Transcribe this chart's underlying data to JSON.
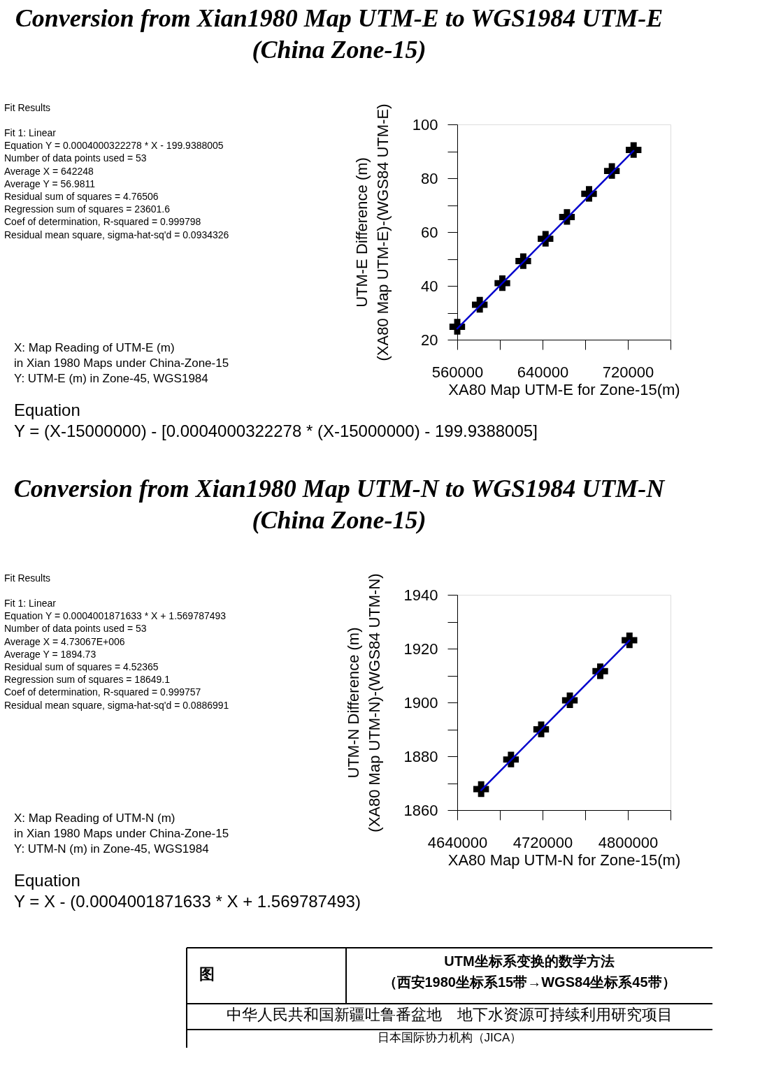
{
  "chart_data": [
    {
      "type": "scatter",
      "title": "Conversion from Xian1980 Map UTM-E to WGS1984 UTM-E\n(China Zone-15)",
      "xlabel": "XA80 Map UTM-E for Zone-15(m)",
      "ylabel": "UTM-E Difference (m)\n(XA80 Map UTM-E)-(WGS84 UTM-E)",
      "xlim": [
        560000,
        760000
      ],
      "ylim": [
        20,
        100
      ],
      "xticks": [
        560000,
        {
          "value": 600000,
          "label": null
        },
        640000,
        {
          "value": 680000,
          "label": null
        },
        720000,
        {
          "value": 760000,
          "label": null
        }
      ],
      "yticks": [
        20,
        {
          "value": 30,
          "label": null
        },
        40,
        {
          "value": 50,
          "label": null
        },
        60,
        {
          "value": 70,
          "label": null
        },
        80,
        {
          "value": 90,
          "label": null
        },
        100
      ],
      "grid": false,
      "series": [
        {
          "type": "scatter",
          "marker": "cross",
          "color": "#000000",
          "x": [
            560000,
            581100,
            602300,
            621900,
            642800,
            662900,
            683600,
            705000,
            725400
          ],
          "values": [
            24.8,
            33.0,
            41.0,
            49.2,
            57.5,
            65.6,
            74.2,
            82.7,
            90.5
          ]
        },
        {
          "type": "line",
          "color": "#0000cc",
          "x": [
            560000,
            725400
          ],
          "values": [
            24.1,
            90.2
          ]
        }
      ],
      "annotations": [
        "Fit Results",
        "Fit 1: Linear\nEquation Y = 0.0004000322278 * X - 199.9388005\nNumber of data points used = 53\nAverage X = 642248\nAverage Y = 56.9811\nResidual sum of squares = 4.76506\nRegression sum of squares = 23601.6\nCoef of determination, R-squared = 0.999798\nResidual mean square, sigma-hat-sq'd = 0.0934326",
        "X: Map Reading of UTM-E (m)\n        in Xian 1980 Maps under China-Zone-15\nY: UTM-E (m) in Zone-45, WGS1984",
        "Equation",
        "Y = (X-15000000) - [0.0004000322278 * (X-15000000) - 199.9388005]"
      ]
    },
    {
      "type": "scatter",
      "title": "Conversion from Xian1980 Map UTM-N to WGS1984 UTM-N\n(China Zone-15)",
      "xlabel": "XA80 Map UTM-N for Zone-15(m)",
      "ylabel": "UTM-N Difference (m)\n(XA80 Map UTM-N)-(WGS84 UTM-N)",
      "xlim": [
        4640000,
        4840000
      ],
      "ylim": [
        1860,
        1940
      ],
      "xticks": [
        4640000,
        {
          "value": 4680000,
          "label": null
        },
        4720000,
        {
          "value": 4760000,
          "label": null
        },
        4800000,
        {
          "value": 4840000,
          "label": null
        }
      ],
      "yticks": [
        1860,
        {
          "value": 1870,
          "label": null
        },
        1880,
        {
          "value": 1890,
          "label": null
        },
        1900,
        {
          "value": 1910,
          "label": null
        },
        1920,
        {
          "value": 1930,
          "label": null
        },
        1940
      ],
      "grid": false,
      "series": [
        {
          "type": "scatter",
          "marker": "cross",
          "color": "#000000",
          "x": [
            4662400,
            4690400,
            4718700,
            4745600,
            4774100,
            4801500
          ],
          "values": [
            1867.8,
            1878.8,
            1890.0,
            1900.8,
            1911.6,
            1923.1
          ]
        },
        {
          "type": "line",
          "color": "#0000cc",
          "x": [
            4662400,
            4801500
          ],
          "values": [
            1867.4,
            1923.0
          ]
        }
      ],
      "annotations": [
        "Fit Results",
        "Fit 1: Linear\nEquation Y = 0.0004001871633 * X + 1.569787493\nNumber of data points used = 53\nAverage X = 4.73067E+006\nAverage Y = 1894.73\nResidual sum of squares = 4.52365\nRegression sum of squares = 18649.1\nCoef of determination, R-squared = 0.999757\nResidual mean square, sigma-hat-sq'd = 0.0886991",
        "X: Map Reading of UTM-N (m)\n        in Xian 1980 Maps under China-Zone-15\nY: UTM-N (m) in Zone-45, WGS1984",
        "Equation",
        "Y = X - (0.0004001871633 * X + 1.569787493)"
      ]
    },
    {
      "type": "other",
      "annotations": [
        "图",
        "UTM坐标系变换的数学方法",
        "（西安1980坐标系15带→WGS84坐标系45带）",
        "中华人民共和国新疆吐鲁番盆地　地下水资源可持续利用研究项目",
        "日本国际协力机构（JICA）"
      ]
    }
  ]
}
